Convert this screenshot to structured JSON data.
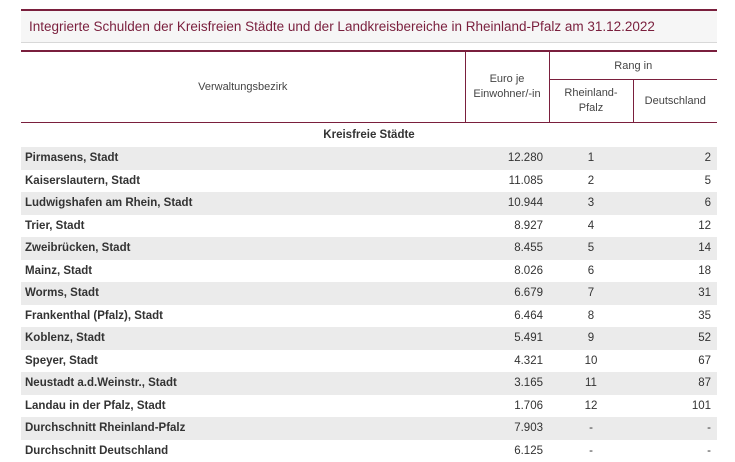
{
  "title": "Integrierte Schulden der Kreisfreien Städte und der Landkreisbereiche in Rheinland-Pfalz am 31.12.2022",
  "headers": {
    "district": "Verwaltungsbezirk",
    "euro_line1": "Euro je",
    "euro_line2": "Einwohner/-in",
    "rank": "Rang in",
    "rank_rlp_line1": "Rheinland-",
    "rank_rlp_line2": "Pfalz",
    "rank_de": "Deutschland"
  },
  "section": "Kreisfreie Städte",
  "rows": [
    {
      "name": "Pirmasens, Stadt",
      "euro": "12.280",
      "rlp": "1",
      "de": "2"
    },
    {
      "name": "Kaiserslautern, Stadt",
      "euro": "11.085",
      "rlp": "2",
      "de": "5"
    },
    {
      "name": "Ludwigshafen am Rhein, Stadt",
      "euro": "10.944",
      "rlp": "3",
      "de": "6"
    },
    {
      "name": "Trier, Stadt",
      "euro": "8.927",
      "rlp": "4",
      "de": "12"
    },
    {
      "name": "Zweibrücken, Stadt",
      "euro": "8.455",
      "rlp": "5",
      "de": "14"
    },
    {
      "name": "Mainz, Stadt",
      "euro": "8.026",
      "rlp": "6",
      "de": "18"
    },
    {
      "name": "Worms, Stadt",
      "euro": "6.679",
      "rlp": "7",
      "de": "31"
    },
    {
      "name": "Frankenthal (Pfalz), Stadt",
      "euro": "6.464",
      "rlp": "8",
      "de": "35"
    },
    {
      "name": "Koblenz, Stadt",
      "euro": "5.491",
      "rlp": "9",
      "de": "52"
    },
    {
      "name": "Speyer, Stadt",
      "euro": "4.321",
      "rlp": "10",
      "de": "67"
    },
    {
      "name": "Neustadt a.d.Weinstr., Stadt",
      "euro": "3.165",
      "rlp": "11",
      "de": "87"
    },
    {
      "name": "Landau in der Pfalz, Stadt",
      "euro": "1.706",
      "rlp": "12",
      "de": "101"
    },
    {
      "name": "Durchschnitt Rheinland-Pfalz",
      "euro": "7.903",
      "rlp": "-",
      "de": "-"
    },
    {
      "name": "Durchschnitt Deutschland",
      "euro": "6.125",
      "rlp": "-",
      "de": "-"
    }
  ]
}
